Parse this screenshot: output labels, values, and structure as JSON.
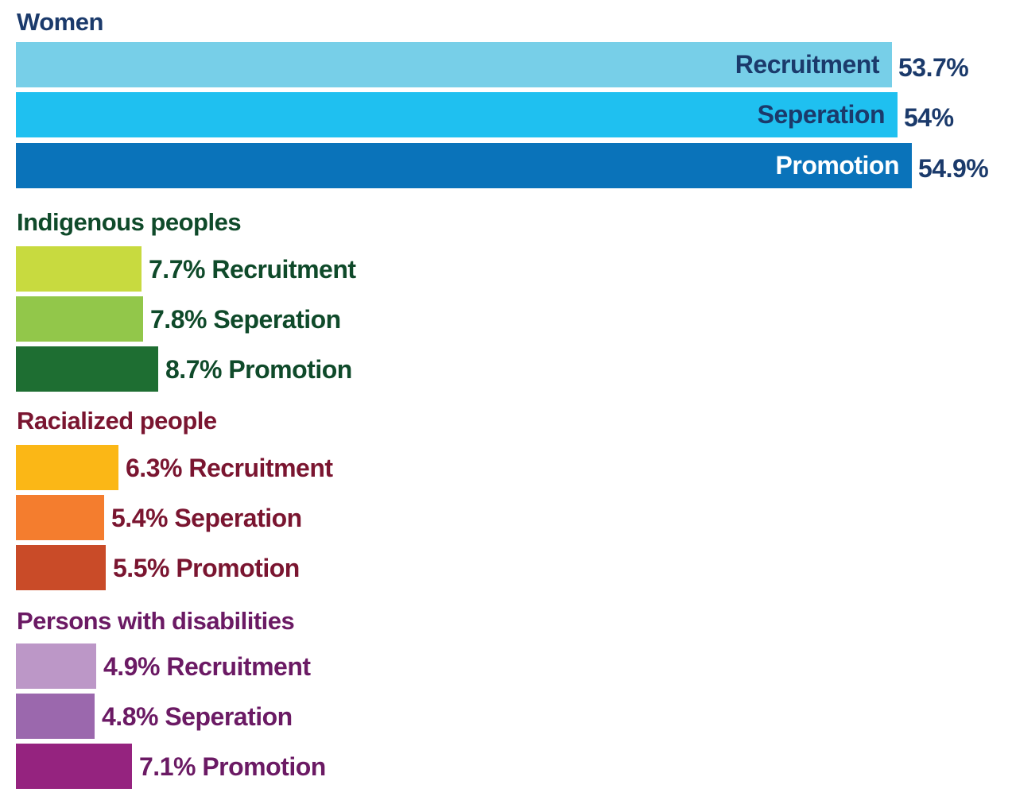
{
  "colors": {
    "women_text": "#1b3a6b",
    "indigenous_text": "#0f4a2a",
    "racialized_text": "#7a1530",
    "disabilities_text": "#6b1a64"
  },
  "chart_data": {
    "type": "bar",
    "orientation": "horizontal",
    "xlim": [
      0,
      55
    ],
    "grid": false,
    "groups": [
      {
        "name": "Women",
        "text_color": "#1b3a6b",
        "label_position": "inside-end",
        "bars": [
          {
            "category": "Recruitment",
            "value": 53.7,
            "value_label": "53.7%",
            "color": "#77cfe8",
            "label_color": "#1b3a6b"
          },
          {
            "category": "Seperation",
            "value": 54,
            "value_label": "54%",
            "color": "#1fc0f0",
            "label_color": "#1b3a6b"
          },
          {
            "category": "Promotion",
            "value": 54.9,
            "value_label": "54.9%",
            "color": "#0a73ba",
            "label_color": "#ffffff"
          }
        ]
      },
      {
        "name": "Indigenous peoples",
        "text_color": "#0f4a2a",
        "label_position": "outside",
        "bars": [
          {
            "category": "Recruitment",
            "value": 7.7,
            "value_label": "7.7%",
            "color": "#c8da3f"
          },
          {
            "category": "Seperation",
            "value": 7.8,
            "value_label": "7.8%",
            "color": "#92c74a"
          },
          {
            "category": "Promotion",
            "value": 8.7,
            "value_label": "8.7%",
            "color": "#1e6e32"
          }
        ]
      },
      {
        "name": "Racialized people",
        "text_color": "#7a1530",
        "label_position": "outside",
        "bars": [
          {
            "category": "Recruitment",
            "value": 6.3,
            "value_label": "6.3%",
            "color": "#fbb716"
          },
          {
            "category": "Seperation",
            "value": 5.4,
            "value_label": "5.4%",
            "color": "#f47d2e"
          },
          {
            "category": "Promotion",
            "value": 5.5,
            "value_label": "5.5%",
            "color": "#c94b28"
          }
        ]
      },
      {
        "name": "Persons with disabilities",
        "text_color": "#6b1a64",
        "label_position": "outside",
        "bars": [
          {
            "category": "Recruitment",
            "value": 4.9,
            "value_label": "4.9%",
            "color": "#bc97c7"
          },
          {
            "category": "Seperation",
            "value": 4.8,
            "value_label": "4.8%",
            "color": "#9b68ad"
          },
          {
            "category": "Promotion",
            "value": 7.1,
            "value_label": "7.1%",
            "color": "#95237f"
          }
        ]
      }
    ]
  }
}
